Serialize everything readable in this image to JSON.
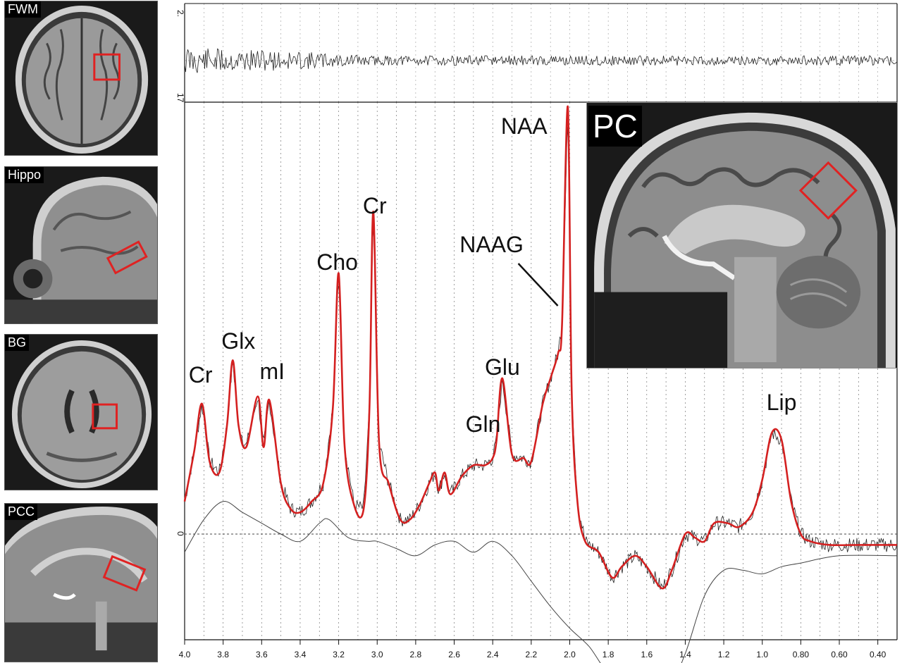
{
  "panels": [
    {
      "label": "FWM",
      "view": "axial"
    },
    {
      "label": "Hippo",
      "view": "sagittal"
    },
    {
      "label": "BG",
      "view": "axial"
    },
    {
      "label": "PCC",
      "view": "sagittal"
    }
  ],
  "inset": {
    "label": "PC",
    "view": "sagittal"
  },
  "colors": {
    "fit": "#d42020",
    "spectrum": "#222222",
    "baseline": "#444444",
    "voxel": "#e02222"
  },
  "chart_data": {
    "type": "line",
    "x_axis": {
      "direction": "reversed",
      "ticks": [
        "4.0",
        "3.8",
        "3.6",
        "3.4",
        "3.2",
        "3.0",
        "2.8",
        "2.6",
        "2.4",
        "2.2",
        "2.0",
        "1.8",
        "1.6",
        "1.4",
        "1.2",
        "1.0",
        "0.80",
        "0.60",
        "0.40"
      ]
    },
    "residual_axis_labels": [
      "2.",
      "17"
    ],
    "zero_label": "0",
    "grid": "vertical dotted lines every 0.1 ppm",
    "peaks": [
      {
        "label": "Cr",
        "ppm": 3.91
      },
      {
        "label": "Glx",
        "ppm": 3.75
      },
      {
        "label": "mI",
        "ppm": 3.56
      },
      {
        "label": "Cho",
        "ppm": 3.2
      },
      {
        "label": "Cr",
        "ppm": 3.02
      },
      {
        "label": "Gln",
        "ppm": 2.45
      },
      {
        "label": "Glu",
        "ppm": 2.35
      },
      {
        "label": "NAAG",
        "ppm": 2.04
      },
      {
        "label": "NAA",
        "ppm": 2.01
      },
      {
        "label": "Lip",
        "ppm": 0.9
      }
    ],
    "series": [
      {
        "role": "fit",
        "color": "#d42020",
        "points": [
          [
            4.0,
            0.09
          ],
          [
            3.95,
            0.23
          ],
          [
            3.91,
            0.36
          ],
          [
            3.87,
            0.2
          ],
          [
            3.82,
            0.17
          ],
          [
            3.78,
            0.3
          ],
          [
            3.75,
            0.48
          ],
          [
            3.72,
            0.3
          ],
          [
            3.68,
            0.24
          ],
          [
            3.62,
            0.38
          ],
          [
            3.59,
            0.24
          ],
          [
            3.56,
            0.37
          ],
          [
            3.5,
            0.14
          ],
          [
            3.45,
            0.07
          ],
          [
            3.4,
            0.06
          ],
          [
            3.34,
            0.09
          ],
          [
            3.28,
            0.14
          ],
          [
            3.23,
            0.35
          ],
          [
            3.2,
            0.72
          ],
          [
            3.17,
            0.25
          ],
          [
            3.12,
            0.08
          ],
          [
            3.07,
            0.07
          ],
          [
            3.04,
            0.35
          ],
          [
            3.02,
            0.89
          ],
          [
            2.99,
            0.25
          ],
          [
            2.94,
            0.14
          ],
          [
            2.88,
            0.04
          ],
          [
            2.83,
            0.04
          ],
          [
            2.78,
            0.08
          ],
          [
            2.73,
            0.14
          ],
          [
            2.7,
            0.17
          ],
          [
            2.68,
            0.12
          ],
          [
            2.65,
            0.17
          ],
          [
            2.62,
            0.11
          ],
          [
            2.56,
            0.16
          ],
          [
            2.5,
            0.19
          ],
          [
            2.44,
            0.19
          ],
          [
            2.4,
            0.21
          ],
          [
            2.38,
            0.26
          ],
          [
            2.35,
            0.43
          ],
          [
            2.3,
            0.22
          ],
          [
            2.24,
            0.21
          ],
          [
            2.2,
            0.2
          ],
          [
            2.14,
            0.36
          ],
          [
            2.1,
            0.43
          ],
          [
            2.06,
            0.5
          ],
          [
            2.04,
            0.58
          ],
          [
            2.01,
            1.18
          ],
          [
            1.99,
            0.4
          ],
          [
            1.96,
            0.09
          ],
          [
            1.92,
            -0.02
          ],
          [
            1.85,
            -0.05
          ],
          [
            1.78,
            -0.12
          ],
          [
            1.73,
            -0.09
          ],
          [
            1.66,
            -0.06
          ],
          [
            1.6,
            -0.09
          ],
          [
            1.52,
            -0.15
          ],
          [
            1.47,
            -0.1
          ],
          [
            1.4,
            0.0
          ],
          [
            1.35,
            -0.01
          ],
          [
            1.3,
            -0.02
          ],
          [
            1.25,
            0.03
          ],
          [
            1.18,
            0.03
          ],
          [
            1.12,
            0.02
          ],
          [
            1.05,
            0.06
          ],
          [
            1.0,
            0.15
          ],
          [
            0.95,
            0.28
          ],
          [
            0.9,
            0.26
          ],
          [
            0.85,
            0.09
          ],
          [
            0.8,
            0.0
          ],
          [
            0.75,
            -0.02
          ],
          [
            0.65,
            -0.03
          ],
          [
            0.5,
            -0.03
          ],
          [
            0.3,
            -0.03
          ]
        ]
      },
      {
        "role": "baseline",
        "color": "#444444",
        "points": [
          [
            4.0,
            -0.05
          ],
          [
            3.9,
            0.04
          ],
          [
            3.8,
            0.09
          ],
          [
            3.7,
            0.06
          ],
          [
            3.6,
            0.03
          ],
          [
            3.5,
            0.0
          ],
          [
            3.4,
            -0.02
          ],
          [
            3.3,
            0.03
          ],
          [
            3.25,
            0.04
          ],
          [
            3.15,
            -0.01
          ],
          [
            3.05,
            -0.02
          ],
          [
            3.0,
            -0.02
          ],
          [
            2.9,
            -0.04
          ],
          [
            2.8,
            -0.06
          ],
          [
            2.7,
            -0.03
          ],
          [
            2.6,
            -0.02
          ],
          [
            2.5,
            -0.05
          ],
          [
            2.4,
            -0.02
          ],
          [
            2.3,
            -0.06
          ],
          [
            2.2,
            -0.13
          ],
          [
            2.1,
            -0.2
          ],
          [
            2.0,
            -0.26
          ],
          [
            1.9,
            -0.31
          ],
          [
            1.8,
            -0.38
          ],
          [
            1.7,
            -0.37
          ],
          [
            1.6,
            -0.42
          ],
          [
            1.5,
            -0.44
          ],
          [
            1.4,
            -0.33
          ],
          [
            1.3,
            -0.17
          ],
          [
            1.2,
            -0.1
          ],
          [
            1.1,
            -0.1
          ],
          [
            1.0,
            -0.11
          ],
          [
            0.9,
            -0.09
          ],
          [
            0.8,
            -0.08
          ],
          [
            0.6,
            -0.06
          ],
          [
            0.3,
            -0.06
          ]
        ]
      }
    ]
  }
}
